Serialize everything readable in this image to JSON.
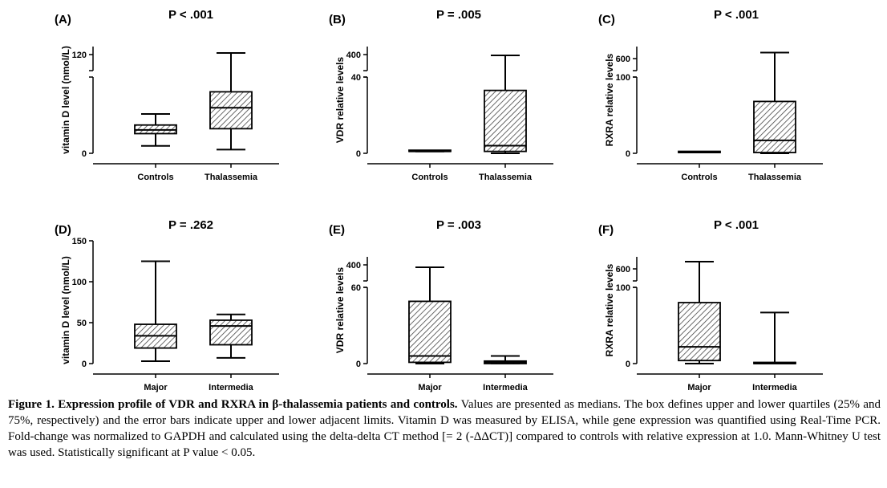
{
  "panels": [
    {
      "label": "(A)",
      "pvalue": "P < .001",
      "ylabel": "vitamin D level (nmol/L)",
      "categories": [
        "Controls",
        "Thalassemia"
      ],
      "ticks": [
        {
          "v": 0,
          "t": "0"
        },
        {
          "v": 120,
          "t": "120"
        }
      ],
      "break": {
        "low": 62,
        "high": 100
      },
      "lowerMax": 62,
      "upperMin": 100,
      "upperMax": 130,
      "boxes": [
        {
          "min": 6,
          "q1": 16,
          "median": 19,
          "q3": 23,
          "max": 32
        },
        {
          "min": 3,
          "q1": 20,
          "median": 37,
          "q3": 50,
          "max": 122
        }
      ]
    },
    {
      "label": "(B)",
      "pvalue": "P = .005",
      "ylabel": "VDR relative levels",
      "categories": [
        "Controls",
        "Thalassemia"
      ],
      "ticks": [
        {
          "v": 0,
          "t": "0"
        },
        {
          "v": 40,
          "t": "40"
        },
        {
          "v": 400,
          "t": "400"
        }
      ],
      "lowerMax": 40,
      "upperMin": 300,
      "upperMax": 450,
      "boxes": [
        {
          "min": 1,
          "q1": 1,
          "median": 1,
          "q3": 1,
          "max": 1
        },
        {
          "min": 0,
          "q1": 1,
          "median": 4,
          "q3": 33,
          "max": 395
        }
      ]
    },
    {
      "label": "(C)",
      "pvalue": "P < .001",
      "ylabel": "RXRA relative levels",
      "categories": [
        "Controls",
        "Thalassemia"
      ],
      "ticks": [
        {
          "v": 0,
          "t": "0"
        },
        {
          "v": 100,
          "t": "100"
        },
        {
          "v": 600,
          "t": "600"
        }
      ],
      "lowerMax": 100,
      "upperMin": 500,
      "upperMax": 700,
      "boxes": [
        {
          "min": 1,
          "q1": 1,
          "median": 1,
          "q3": 1,
          "max": 1
        },
        {
          "min": 0,
          "q1": 1,
          "median": 17,
          "q3": 68,
          "max": 650
        }
      ]
    },
    {
      "label": "(D)",
      "pvalue": "P = .262",
      "ylabel": "vitamin D level (nmol/L)",
      "categories": [
        "Major",
        "Intermedia"
      ],
      "ticks": [
        {
          "v": 0,
          "t": "0"
        },
        {
          "v": 50,
          "t": "50"
        },
        {
          "v": 100,
          "t": "100"
        },
        {
          "v": 150,
          "t": "150"
        }
      ],
      "lowerMax": 150,
      "boxes": [
        {
          "min": 3,
          "q1": 19,
          "median": 34,
          "q3": 48,
          "max": 125
        },
        {
          "min": 7,
          "q1": 23,
          "median": 46,
          "q3": 53,
          "max": 60
        }
      ]
    },
    {
      "label": "(E)",
      "pvalue": "P = .003",
      "ylabel": "VDR relative levels",
      "categories": [
        "Major",
        "Intermedia"
      ],
      "ticks": [
        {
          "v": 0,
          "t": "0"
        },
        {
          "v": 60,
          "t": "60"
        },
        {
          "v": 400,
          "t": "400"
        }
      ],
      "lowerMax": 60,
      "upperMin": 300,
      "upperMax": 450,
      "boxes": [
        {
          "min": 0,
          "q1": 1,
          "median": 6,
          "q3": 49,
          "max": 385
        },
        {
          "min": 0,
          "q1": 0,
          "median": 1,
          "q3": 2,
          "max": 6
        }
      ]
    },
    {
      "label": "(F)",
      "pvalue": "P < .001",
      "ylabel": "RXRA relative levels",
      "categories": [
        "Major",
        "Intermedia"
      ],
      "ticks": [
        {
          "v": 0,
          "t": "0"
        },
        {
          "v": 100,
          "t": "100"
        },
        {
          "v": 600,
          "t": "600"
        }
      ],
      "lowerMax": 100,
      "upperMin": 500,
      "upperMax": 700,
      "boxes": [
        {
          "min": 0,
          "q1": 4,
          "median": 22,
          "q3": 80,
          "max": 660
        },
        {
          "min": 0,
          "q1": 0,
          "median": 0,
          "q3": 1,
          "max": 67
        }
      ]
    }
  ],
  "caption": {
    "title": "Figure 1. Expression profile of VDR and RXRA in β-thalassemia patients and controls.",
    "body": " Values are presented as medians. The box defines upper and lower quartiles (25% and 75%, respectively) and the error bars indicate upper and lower adjacent limits. Vitamin D was measured by ELISA, while gene expression was quantified using Real-Time PCR. Fold-change was normalized to GAPDH and calculated using the delta-delta CT method [= 2 (-ΔΔCT)] compared to controls with relative expression at 1.0. Mann-Whitney U test was used. Statistically significant at P value < 0.05."
  },
  "chart_data": [
    {
      "type": "box",
      "title": "P < .001",
      "ylabel": "vitamin D level (nmol/L)",
      "categories": [
        "Controls",
        "Thalassemia"
      ],
      "series": [
        {
          "name": "Controls",
          "min": 6,
          "q1": 16,
          "median": 19,
          "q3": 23,
          "max": 32
        },
        {
          "name": "Thalassemia",
          "min": 3,
          "q1": 20,
          "median": 37,
          "q3": 50,
          "max": 122
        }
      ]
    },
    {
      "type": "box",
      "title": "P = .005",
      "ylabel": "VDR relative levels",
      "categories": [
        "Controls",
        "Thalassemia"
      ],
      "series": [
        {
          "name": "Controls",
          "min": 1,
          "q1": 1,
          "median": 1,
          "q3": 1,
          "max": 1
        },
        {
          "name": "Thalassemia",
          "min": 0,
          "q1": 1,
          "median": 4,
          "q3": 33,
          "max": 395
        }
      ]
    },
    {
      "type": "box",
      "title": "P < .001",
      "ylabel": "RXRA relative levels",
      "categories": [
        "Controls",
        "Thalassemia"
      ],
      "series": [
        {
          "name": "Controls",
          "min": 1,
          "q1": 1,
          "median": 1,
          "q3": 1,
          "max": 1
        },
        {
          "name": "Thalassemia",
          "min": 0,
          "q1": 1,
          "median": 17,
          "q3": 68,
          "max": 650
        }
      ]
    },
    {
      "type": "box",
      "title": "P = .262",
      "ylabel": "vitamin D level (nmol/L)",
      "categories": [
        "Major",
        "Intermedia"
      ],
      "series": [
        {
          "name": "Major",
          "min": 3,
          "q1": 19,
          "median": 34,
          "q3": 48,
          "max": 125
        },
        {
          "name": "Intermedia",
          "min": 7,
          "q1": 23,
          "median": 46,
          "q3": 53,
          "max": 60
        }
      ]
    },
    {
      "type": "box",
      "title": "P = .003",
      "ylabel": "VDR relative levels",
      "categories": [
        "Major",
        "Intermedia"
      ],
      "series": [
        {
          "name": "Major",
          "min": 0,
          "q1": 1,
          "median": 6,
          "q3": 49,
          "max": 385
        },
        {
          "name": "Intermedia",
          "min": 0,
          "q1": 0,
          "median": 1,
          "q3": 2,
          "max": 6
        }
      ]
    },
    {
      "type": "box",
      "title": "P < .001",
      "ylabel": "RXRA relative levels",
      "categories": [
        "Major",
        "Intermedia"
      ],
      "series": [
        {
          "name": "Major",
          "min": 0,
          "q1": 4,
          "median": 22,
          "q3": 80,
          "max": 660
        },
        {
          "name": "Intermedia",
          "min": 0,
          "q1": 0,
          "median": 0,
          "q3": 1,
          "max": 67
        }
      ]
    }
  ]
}
